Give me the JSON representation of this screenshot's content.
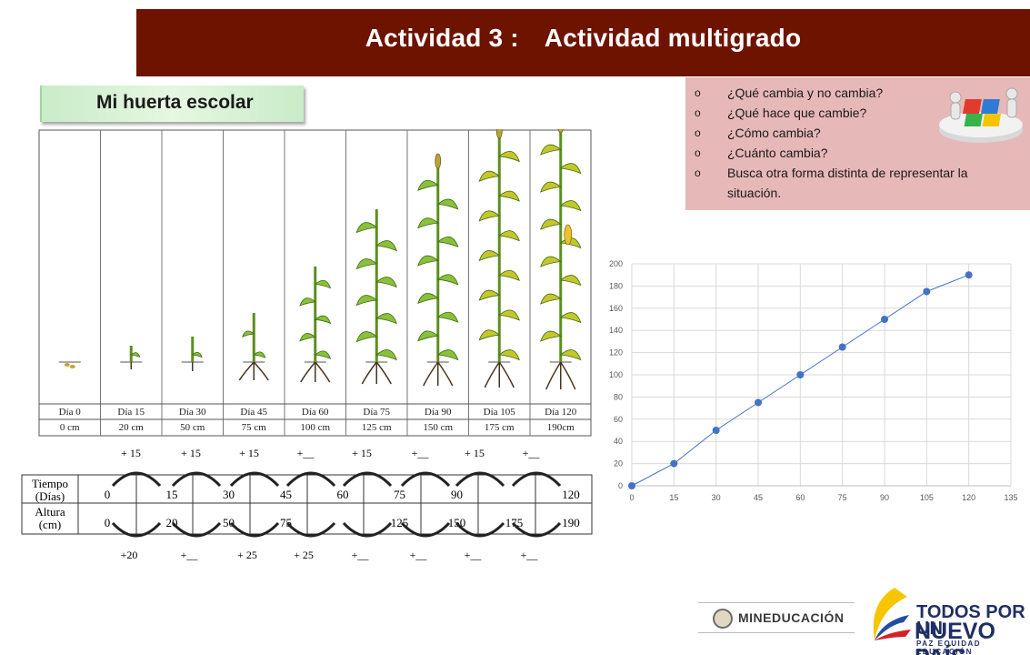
{
  "header": {
    "title_part1": "Actividad 3 :",
    "title_part2": "Actividad multigrado"
  },
  "tag": {
    "label": "Mi huerta escolar"
  },
  "questions": [
    {
      "bullet": "o",
      "text": "¿Qué cambia y no cambia?"
    },
    {
      "bullet": "o",
      "text": "¿Qué hace que cambie?"
    },
    {
      "bullet": "o",
      "text": "¿Cómo cambia?"
    },
    {
      "bullet": "o",
      "text": "¿Cuánto cambia?"
    },
    {
      "bullet": "o",
      "text": "Busca otra forma distinta de representar la situación."
    }
  ],
  "plant_table": {
    "days": [
      "Día 0",
      "Día 15",
      "Día 30",
      "Día 45",
      "Día 60",
      "Día 75",
      "Día 90",
      "Día 105",
      "Día 120"
    ],
    "heights": [
      "0 cm",
      "20 cm",
      "50 cm",
      "75 cm",
      "100 cm",
      "125 cm",
      "150 cm",
      "175 cm",
      "190cm"
    ]
  },
  "sequence": {
    "row1_label": [
      "Tiempo",
      "(Días)"
    ],
    "row2_label": [
      "Altura",
      "(cm)"
    ],
    "tiempo": [
      "0",
      "15",
      "30",
      "45",
      "60",
      "75",
      "90",
      "",
      "120"
    ],
    "altura": [
      "0",
      "20",
      "50",
      "75",
      "",
      "125",
      "150",
      "175",
      "190"
    ],
    "top_increments": [
      "+ 15",
      "+ 15",
      "+ 15",
      "+__",
      "+ 15",
      "+__",
      "+ 15",
      "+__"
    ],
    "bottom_increments": [
      "+20",
      "+__",
      "+ 25",
      "+ 25",
      "+__",
      "+__",
      "+__",
      "+__"
    ]
  },
  "chart_data": {
    "type": "line",
    "title": "",
    "xlabel": "",
    "ylabel": "",
    "x": [
      0,
      15,
      30,
      45,
      60,
      75,
      90,
      105,
      120
    ],
    "series": [
      {
        "values": [
          0,
          20,
          50,
          75,
          100,
          125,
          150,
          175,
          190
        ]
      }
    ],
    "xlim": [
      0,
      135
    ],
    "ylim": [
      0,
      200
    ],
    "xticks": [
      0,
      15,
      30,
      45,
      60,
      75,
      90,
      105,
      120,
      135
    ],
    "yticks": [
      0,
      20,
      40,
      60,
      80,
      100,
      120,
      140,
      160,
      180,
      200
    ],
    "grid": true,
    "line_color": "#4472c4"
  },
  "logos": {
    "mineducacion": "MINEDUCACIÓN",
    "todos_line1": "TODOS POR UN",
    "todos_line2": "NUEVO PAÍS",
    "todos_line3": "PAZ  EQUIDAD  EDUCACIÓN"
  }
}
